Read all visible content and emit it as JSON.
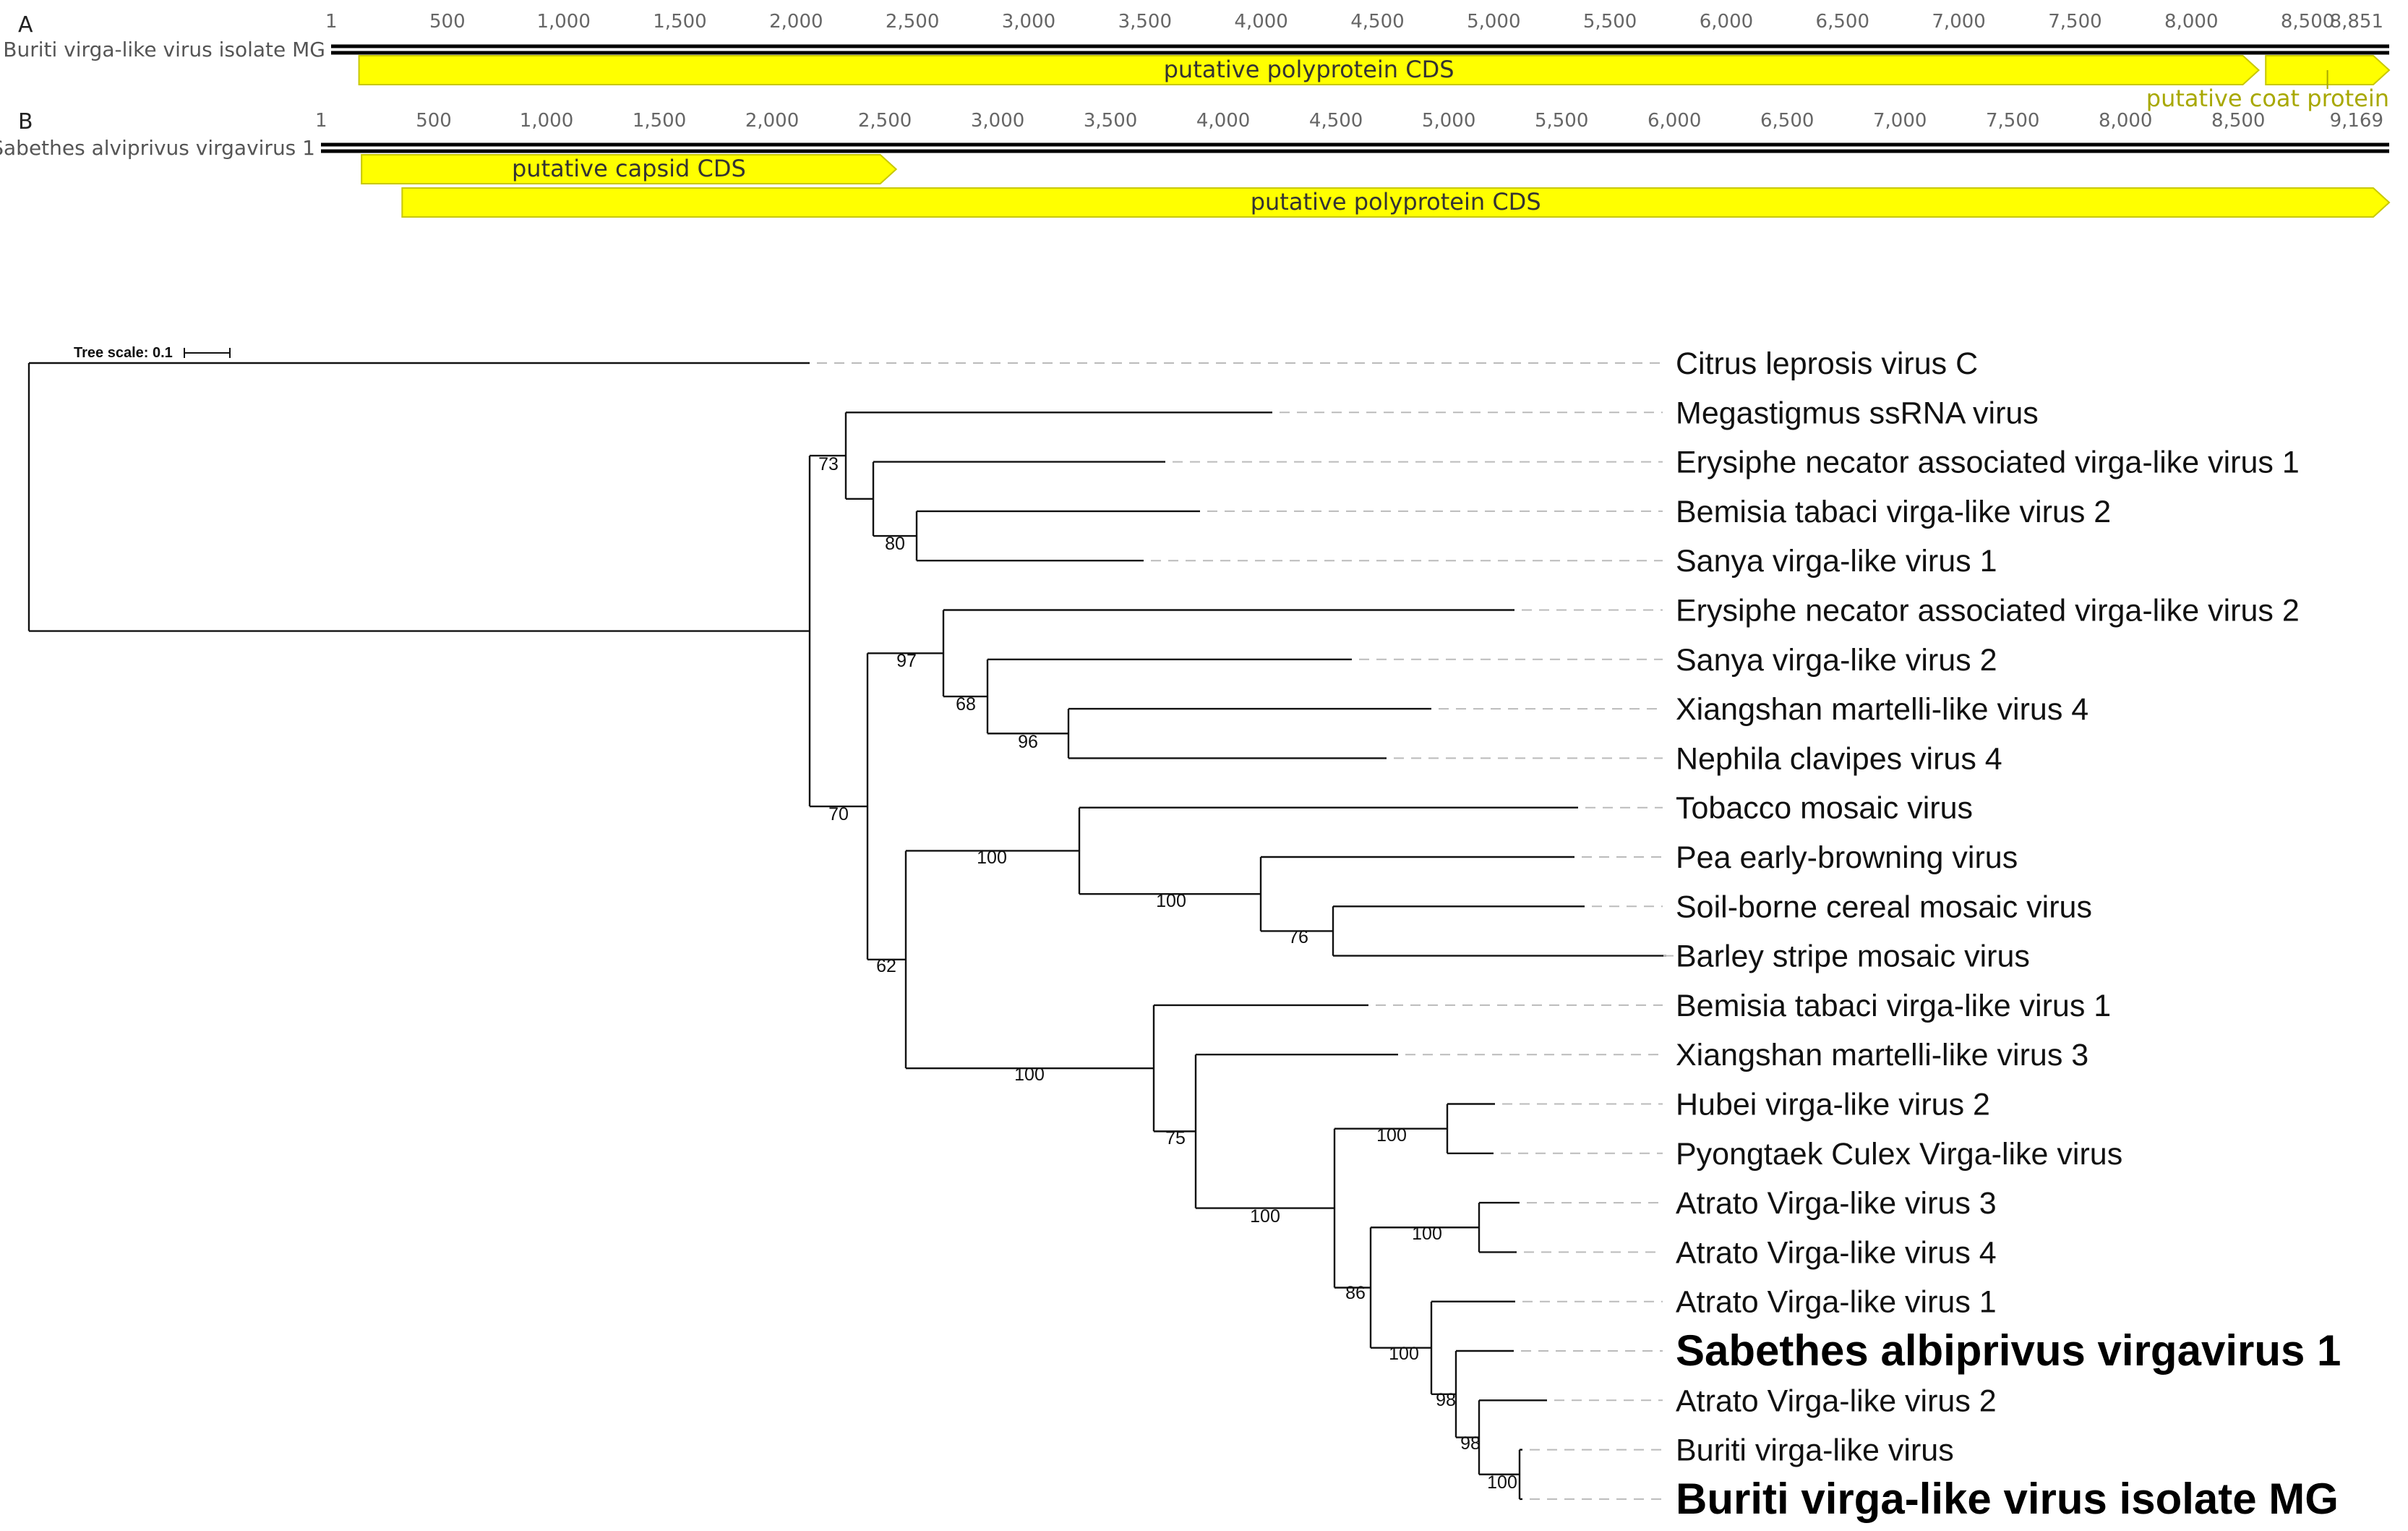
{
  "genome_maps": [
    {
      "panel": "A",
      "sequence_name": "Buriti virga-like virus isolate MG",
      "length": 8851,
      "ruler_ticks": [
        "1",
        "500",
        "1,000",
        "1,500",
        "2,000",
        "2,500",
        "3,000",
        "3,500",
        "4,000",
        "4,500",
        "5,000",
        "5,500",
        "6,000",
        "6,500",
        "7,000",
        "7,500",
        "8,000",
        "8,500",
        "8,851"
      ],
      "features": [
        {
          "label": "putative polyprotein CDS",
          "start": 120,
          "end": 8290,
          "color": "#ffff00"
        },
        {
          "label": "putative coat protein",
          "start": 8320,
          "end": 8851,
          "color": "#ffff00",
          "label_outside": true
        }
      ]
    },
    {
      "panel": "B",
      "sequence_name": "Sabethes alviprivus virgavirus 1",
      "length": 9169,
      "ruler_ticks": [
        "1",
        "500",
        "1,000",
        "1,500",
        "2,000",
        "2,500",
        "3,000",
        "3,500",
        "4,000",
        "4,500",
        "5,000",
        "5,500",
        "6,000",
        "6,500",
        "7,000",
        "7,500",
        "8,000",
        "8,500",
        "9,169"
      ],
      "features": [
        {
          "label": "putative capsid CDS",
          "start": 180,
          "end": 2550,
          "color": "#ffff00"
        },
        {
          "label": "putative polyprotein CDS",
          "start": 360,
          "end": 9169,
          "color": "#ffff00"
        }
      ]
    }
  ],
  "tree": {
    "scale_label": "Tree scale: 0.1",
    "tips": [
      {
        "name": "Citrus leprosis virus C",
        "bold": false
      },
      {
        "name": "Megastigmus ssRNA virus",
        "bold": false
      },
      {
        "name": "Erysiphe necator associated virga-like virus 1",
        "bold": false
      },
      {
        "name": "Bemisia tabaci virga-like virus 2",
        "bold": false
      },
      {
        "name": "Sanya virga-like virus 1",
        "bold": false
      },
      {
        "name": "Erysiphe necator associated virga-like virus 2",
        "bold": false
      },
      {
        "name": "Sanya virga-like virus 2",
        "bold": false
      },
      {
        "name": "Xiangshan martelli-like virus 4",
        "bold": false
      },
      {
        "name": "Nephila clavipes virus 4",
        "bold": false
      },
      {
        "name": "Tobacco mosaic virus",
        "bold": false
      },
      {
        "name": "Pea early-browning virus",
        "bold": false
      },
      {
        "name": "Soil-borne cereal mosaic virus",
        "bold": false
      },
      {
        "name": "Barley stripe mosaic virus",
        "bold": false
      },
      {
        "name": "Bemisia tabaci virga-like virus 1",
        "bold": false
      },
      {
        "name": "Xiangshan martelli-like virus 3",
        "bold": false
      },
      {
        "name": "Hubei virga-like virus 2",
        "bold": false
      },
      {
        "name": "Pyongtaek Culex Virga-like virus",
        "bold": false
      },
      {
        "name": "Atrato Virga-like virus 3",
        "bold": false
      },
      {
        "name": "Atrato Virga-like virus 4",
        "bold": false
      },
      {
        "name": "Atrato Virga-like virus 1",
        "bold": false
      },
      {
        "name": "Sabethes albiprivus virgavirus 1",
        "bold": true
      },
      {
        "name": "Atrato Virga-like virus 2",
        "bold": false
      },
      {
        "name": "Buriti virga-like virus",
        "bold": false
      },
      {
        "name": "Buriti virga-like virus isolate MG",
        "bold": true
      }
    ],
    "bootstrap_values": [
      "73",
      "80",
      "97",
      "68",
      "96",
      "70",
      "100",
      "100",
      "76",
      "62",
      "100",
      "75",
      "100",
      "100",
      "100",
      "86",
      "100",
      "98",
      "98",
      "100"
    ]
  }
}
